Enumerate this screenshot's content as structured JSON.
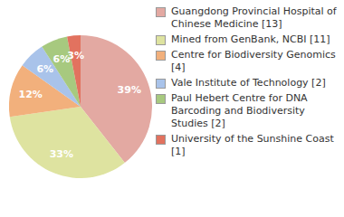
{
  "chart_data": {
    "type": "pie",
    "categories": [
      "Guangdong Provincial Hospital of Chinese Medicine [13]",
      "Mined from GenBank, NCBI [11]",
      "Centre for Biodiversity Genomics [4]",
      "Vale Institute of Technology [2]",
      "Paul Hebert Centre for DNA Barcoding and Biodiversity Studies [2]",
      "University of the Sunshine Coast [1]"
    ],
    "values": [
      39,
      33,
      12,
      6,
      6,
      3
    ],
    "value_labels": [
      "39%",
      "33%",
      "12%",
      "6%",
      "6%",
      "3%"
    ],
    "colors": [
      "#e3a9a2",
      "#dee3a0",
      "#f2b07c",
      "#a9c3ea",
      "#a7c97f",
      "#e2725f"
    ],
    "data_labels": true,
    "legend": "right"
  }
}
